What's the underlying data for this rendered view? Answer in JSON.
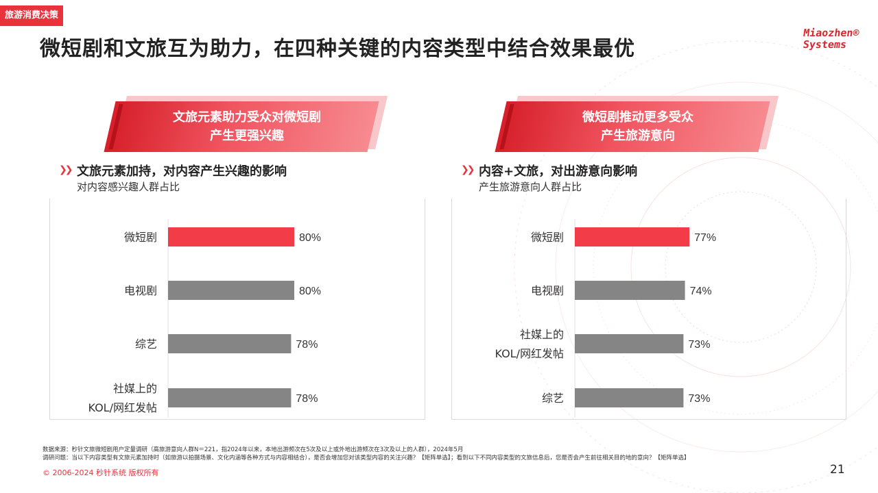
{
  "tag": "旅游消费决策",
  "title": "微短剧和文旅互为助力，在四种关键的内容类型中结合效果最优",
  "logo": {
    "line1": "Miaozhen®",
    "line2": "Systems"
  },
  "colors": {
    "accent": "#f23c48",
    "gray": "#858585"
  },
  "left_panel": {
    "banner": [
      "文旅元素助力受众对微短剧",
      "产生更强兴趣"
    ],
    "heading": "文旅元素加持，对内容产生兴趣的影响",
    "subheading": "对内容感兴趣人群占比"
  },
  "right_panel": {
    "banner": [
      "微短剧推动更多受众",
      "产生旅游意向"
    ],
    "heading": "内容+文旅，对出游意向影响",
    "subheading": "产生旅游意向人群占比"
  },
  "chart_data": [
    {
      "type": "bar",
      "orientation": "horizontal",
      "categories": [
        "微短剧",
        "电视剧",
        "综艺",
        "社媒上的\nKOL/网红发帖"
      ],
      "values": [
        80,
        80,
        78,
        78
      ],
      "labels": [
        "80%",
        "80%",
        "78%",
        "78%"
      ],
      "highlight_index": 0,
      "xlim": [
        0,
        100
      ]
    },
    {
      "type": "bar",
      "orientation": "horizontal",
      "categories": [
        "微短剧",
        "电视剧",
        "社媒上的\nKOL/网红发帖",
        "综艺"
      ],
      "values": [
        77,
        74,
        73,
        73
      ],
      "labels": [
        "77%",
        "74%",
        "73%",
        "73%"
      ],
      "highlight_index": 0,
      "xlim": [
        0,
        100
      ]
    }
  ],
  "footer": {
    "source": "数据来源：秒针文旅微短剧用户定量调研（高旅游意向人群N＝221，指2024年以来，本地出游频次在5次及以上或外地出游频次在3次及以上的人群），2024年5月",
    "question": "调研问题：当以下内容类型有文旅元素加持时（如旅游以拍摄场景、文化内涵等各种方式与内容相结合），是否会增加您对该类型内容的关注兴趣？【矩阵单选】；看到以下不同内容类型的文旅信息后，您是否会产生前往相关目的地的意向？【矩阵单选】",
    "copyright": "© 2006-2024 秒针系统 版权所有",
    "page": "21"
  }
}
